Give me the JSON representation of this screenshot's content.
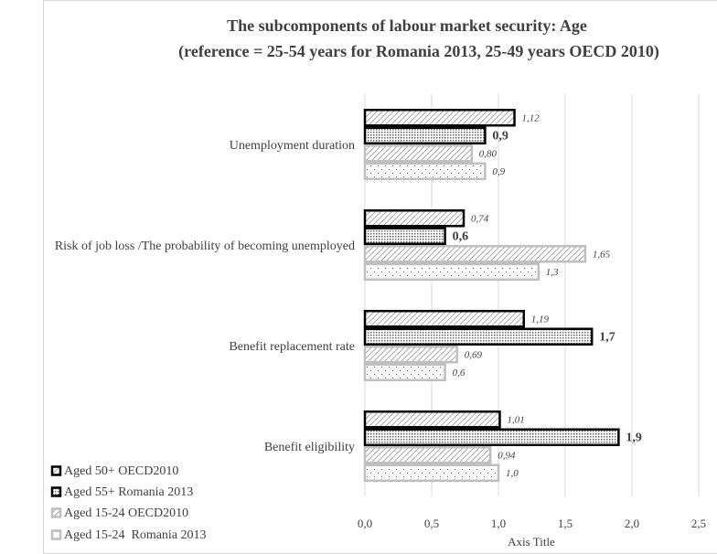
{
  "chart_data": {
    "type": "hbar",
    "title": "The subcomponents of labour market security: Age",
    "subtitle": "(reference = 25-54 years for Romania 2013, 25-49 years OECD 2010)",
    "x_label": "Axis Title",
    "categories": [
      "Unemployment duration",
      "Risk of job loss /The probability of becoming unemployed",
      "Benefit replacement rate",
      "Benefit eligibility"
    ],
    "series": [
      {
        "name": "Aged 50+ OECD2010",
        "color": "#000000",
        "pattern": "hatch",
        "values": [
          1.12,
          0.74,
          1.19,
          1.01
        ],
        "value_labels": [
          "1,12",
          "0,74",
          "1,19",
          "1,01"
        ]
      },
      {
        "name": "Aged 55+ Romania 2013",
        "color": "#000000",
        "pattern": "dense-dots",
        "values": [
          0.9,
          0.6,
          1.7,
          1.9
        ],
        "value_labels": [
          "0,9",
          "0,6",
          "1,7",
          "1,9"
        ]
      },
      {
        "name": "Aged 15-24 OECD2010",
        "color": "#bfbfbf",
        "pattern": "hatch",
        "values": [
          0.8,
          1.65,
          0.69,
          0.94
        ],
        "value_labels": [
          "0,80",
          "1,65",
          "0,69",
          "0,94"
        ]
      },
      {
        "name": "Aged 15-24  Romania 2013",
        "color": "#bfbfbf",
        "pattern": "sparse-dots",
        "values": [
          0.9,
          1.3,
          0.6,
          1.0
        ],
        "value_labels": [
          "0,9",
          "1,3",
          "0,6",
          "1,0"
        ]
      }
    ],
    "xlim": [
      0,
      2.5
    ],
    "xticks": [
      {
        "value": 0,
        "label": "0,0"
      },
      {
        "value": 0.5,
        "label": "0,5"
      },
      {
        "value": 1,
        "label": "1,0"
      },
      {
        "value": 1.5,
        "label": "1,5"
      },
      {
        "value": 2,
        "label": "2,0"
      },
      {
        "value": 2.5,
        "label": "2,5"
      }
    ],
    "grid": true,
    "legend": "bottom-left"
  }
}
